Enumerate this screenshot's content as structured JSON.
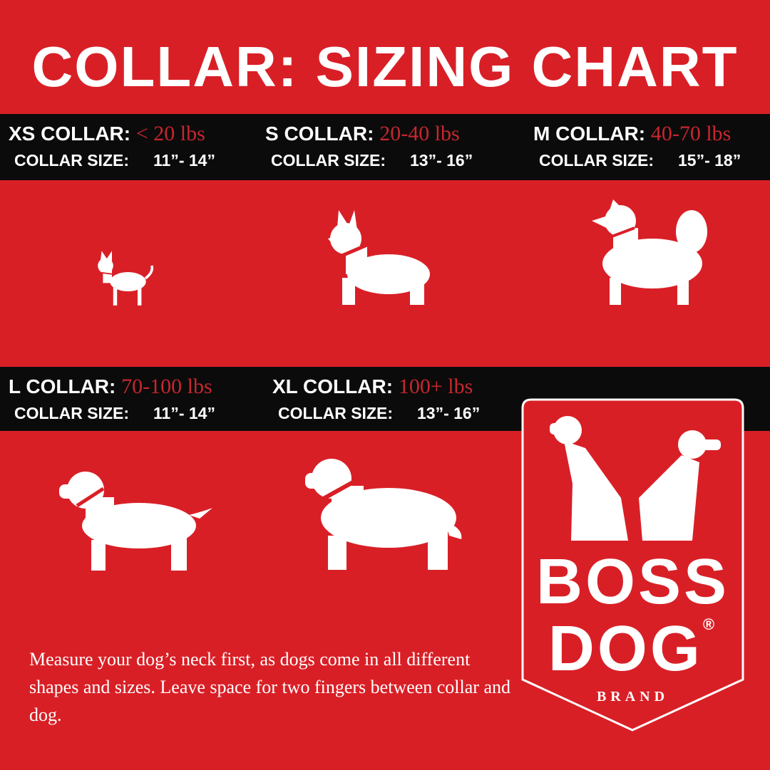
{
  "title": "COLLAR: SIZING CHART",
  "size_label": "COLLAR SIZE:",
  "sizes": [
    {
      "name": "XS COLLAR:",
      "weight": "< 20 lbs",
      "collar": "11”- 14”"
    },
    {
      "name": "S COLLAR:",
      "weight": "20-40 lbs",
      "collar": "13”- 16”"
    },
    {
      "name": "M COLLAR:",
      "weight": "40-70 lbs",
      "collar": "15”- 18”"
    },
    {
      "name": "L COLLAR:",
      "weight": "70-100 lbs",
      "collar": "11”- 14”"
    },
    {
      "name": "XL COLLAR:",
      "weight": "100+ lbs",
      "collar": "13”- 16”"
    }
  ],
  "note": "Measure your dog’s neck first, as dogs come in all different shapes and sizes. Leave space for two fingers between collar and dog.",
  "logo": {
    "line1": "BOSS",
    "line2": "DOG",
    "registered": "®",
    "sub": "BRAND"
  },
  "colors": {
    "background": "#d91f26",
    "band": "#0b0b0b",
    "weight_text": "#c8262e",
    "text": "#ffffff"
  }
}
